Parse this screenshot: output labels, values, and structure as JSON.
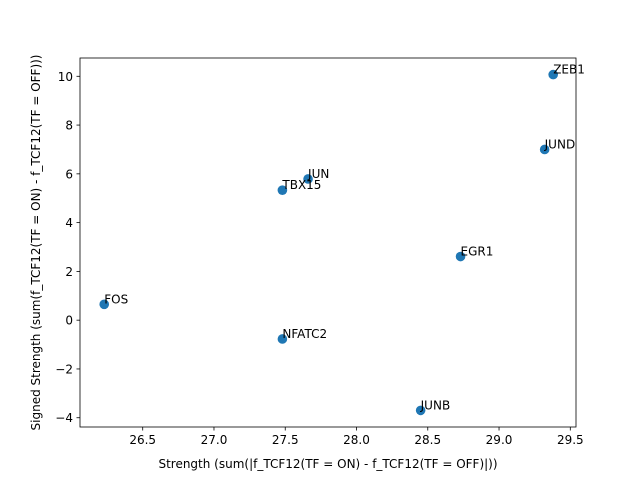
{
  "chart_data": {
    "type": "scatter",
    "title": "",
    "xlabel": "Strength (sum(|f_TCF12(TF = ON) - f_TCF12(TF = OFF)|))",
    "ylabel": "Signed Strength (sum(f_TCF12(TF = ON) - f_TCF12(TF = OFF)))",
    "xlim": [
      26.06,
      29.54
    ],
    "ylim": [
      -4.38,
      10.75
    ],
    "xticks": [
      26.5,
      27.0,
      27.5,
      28.0,
      28.5,
      29.0,
      29.5
    ],
    "xtick_labels": [
      "26.5",
      "27.0",
      "27.5",
      "28.0",
      "28.5",
      "29.0",
      "29.5"
    ],
    "yticks": [
      -4,
      -2,
      0,
      2,
      4,
      6,
      8,
      10
    ],
    "ytick_labels": [
      "−4",
      "−2",
      "0",
      "2",
      "4",
      "6",
      "8",
      "10"
    ],
    "grid": false,
    "marker_color": "#1f77b4",
    "points": [
      {
        "label": "ZEB1",
        "x": 29.38,
        "y": 10.07
      },
      {
        "label": "JUND",
        "x": 29.32,
        "y": 7.0
      },
      {
        "label": "JUN",
        "x": 27.66,
        "y": 5.79
      },
      {
        "label": "TBX15",
        "x": 27.48,
        "y": 5.33
      },
      {
        "label": "EGR1",
        "x": 28.73,
        "y": 2.61
      },
      {
        "label": "FOS",
        "x": 26.23,
        "y": 0.65
      },
      {
        "label": "NFATC2",
        "x": 27.48,
        "y": -0.77
      },
      {
        "label": "JUNB",
        "x": 28.45,
        "y": -3.7
      }
    ]
  }
}
